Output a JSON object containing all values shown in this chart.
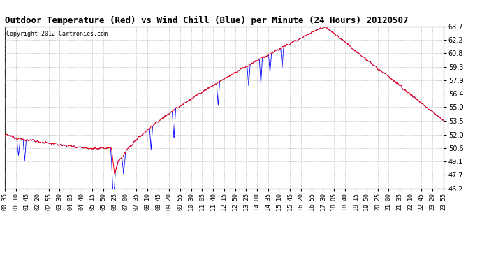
{
  "title": "Outdoor Temperature (Red) vs Wind Chill (Blue) per Minute (24 Hours) 20120507",
  "copyright": "Copyright 2012 Cartronics.com",
  "ylim": [
    46.2,
    63.7
  ],
  "yticks": [
    46.2,
    47.7,
    49.1,
    50.6,
    52.0,
    53.5,
    55.0,
    56.4,
    57.9,
    59.3,
    60.8,
    62.2,
    63.7
  ],
  "bg_color": "#ffffff",
  "grid_color": "#aaaaaa",
  "temp_color": "red",
  "wind_color": "blue",
  "title_fontsize": 9,
  "copyright_fontsize": 6,
  "xtick_labels": [
    "00:35",
    "01:10",
    "01:45",
    "02:20",
    "02:55",
    "03:30",
    "04:05",
    "04:40",
    "05:15",
    "05:50",
    "06:25",
    "07:00",
    "07:35",
    "08:10",
    "08:45",
    "09:20",
    "09:55",
    "10:30",
    "11:05",
    "11:40",
    "12:15",
    "12:50",
    "13:25",
    "14:00",
    "14:35",
    "15:10",
    "15:45",
    "16:20",
    "16:55",
    "17:30",
    "18:05",
    "18:40",
    "19:15",
    "19:50",
    "20:25",
    "21:00",
    "21:35",
    "22:10",
    "22:45",
    "23:20",
    "23:55"
  ]
}
